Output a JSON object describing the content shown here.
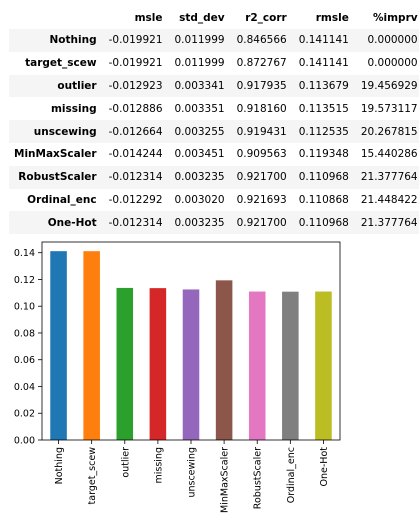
{
  "table": {
    "columns": [
      "msle",
      "std_dev",
      "r2_corr",
      "rmsle",
      "%imprv"
    ],
    "rows": [
      {
        "name": "Nothing",
        "values": [
          "-0.019921",
          "0.011999",
          "0.846566",
          "0.141141",
          "0.000000"
        ]
      },
      {
        "name": "target_scew",
        "values": [
          "-0.019921",
          "0.011999",
          "0.872767",
          "0.141141",
          "0.000000"
        ]
      },
      {
        "name": "outlier",
        "values": [
          "-0.012923",
          "0.003341",
          "0.917935",
          "0.113679",
          "19.456929"
        ]
      },
      {
        "name": "missing",
        "values": [
          "-0.012886",
          "0.003351",
          "0.918160",
          "0.113515",
          "19.573117"
        ]
      },
      {
        "name": "unscewing",
        "values": [
          "-0.012664",
          "0.003255",
          "0.919431",
          "0.112535",
          "20.267815"
        ]
      },
      {
        "name": "MinMaxScaler",
        "values": [
          "-0.014244",
          "0.003451",
          "0.909563",
          "0.119348",
          "15.440286"
        ]
      },
      {
        "name": "RobustScaler",
        "values": [
          "-0.012314",
          "0.003235",
          "0.921700",
          "0.110968",
          "21.377764"
        ]
      },
      {
        "name": "Ordinal_enc",
        "values": [
          "-0.012292",
          "0.003020",
          "0.921693",
          "0.110868",
          "21.448422"
        ]
      },
      {
        "name": "One-Hot",
        "values": [
          "-0.012314",
          "0.003235",
          "0.921700",
          "0.110968",
          "21.377764"
        ]
      }
    ]
  },
  "chart_data": {
    "type": "bar",
    "categories": [
      "Nothing",
      "target_scew",
      "outlier",
      "missing",
      "unscewing",
      "MinMaxScaler",
      "RobustScaler",
      "Ordinal_enc",
      "One-Hot"
    ],
    "values": [
      0.141141,
      0.141141,
      0.113679,
      0.113515,
      0.112535,
      0.119348,
      0.110968,
      0.110868,
      0.110968
    ],
    "colors": [
      "#1f77b4",
      "#ff7f0e",
      "#2ca02c",
      "#d62728",
      "#9467bd",
      "#8c564b",
      "#e377c2",
      "#7f7f7f",
      "#bcbd22"
    ],
    "ylim": [
      0,
      0.148
    ],
    "yticks": [
      "0.00",
      "0.02",
      "0.04",
      "0.06",
      "0.08",
      "0.10",
      "0.12",
      "0.14"
    ],
    "title": "",
    "xlabel": "",
    "ylabel": "",
    "grid": false,
    "legend": false
  }
}
